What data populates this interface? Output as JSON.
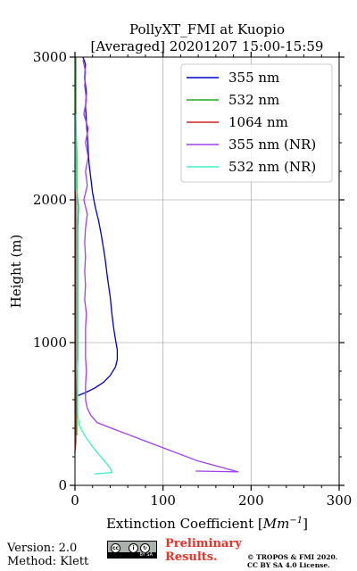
{
  "chart_data": {
    "type": "line",
    "title": "PollyXT_FMI at Kuopio",
    "subtitle": "[Averaged] 20201207 15:00-15:59",
    "xlabel_prefix": "Extinction Coefficient [",
    "xlabel_unit": "Mm",
    "xlabel_exp": "−1",
    "xlabel_suffix": "]",
    "ylabel": "Height (m)",
    "xlim": [
      0,
      300
    ],
    "ylim": [
      0,
      3000
    ],
    "xticks": [
      0,
      100,
      200,
      300
    ],
    "yticks": [
      0,
      1000,
      2000,
      3000
    ],
    "xtick_labels": [
      "0",
      "100",
      "200",
      "300"
    ],
    "ytick_labels": [
      "0",
      "1000",
      "2000",
      "3000"
    ],
    "grid": true,
    "legend_position": "top-right",
    "series": [
      {
        "name": "355 nm",
        "color": "#0000cd",
        "points": [
          [
            2,
            625
          ],
          [
            12,
            650
          ],
          [
            22,
            680
          ],
          [
            32,
            720
          ],
          [
            40,
            770
          ],
          [
            46,
            830
          ],
          [
            48,
            880
          ],
          [
            48,
            950
          ],
          [
            46,
            1020
          ],
          [
            44,
            1100
          ],
          [
            42,
            1200
          ],
          [
            40,
            1320
          ],
          [
            37,
            1450
          ],
          [
            34,
            1600
          ],
          [
            30,
            1750
          ],
          [
            27,
            1850
          ],
          [
            23,
            1950
          ],
          [
            20,
            2050
          ],
          [
            18,
            2150
          ],
          [
            16,
            2250
          ],
          [
            15,
            2350
          ],
          [
            14,
            2450
          ],
          [
            13,
            2550
          ],
          [
            12,
            2650
          ],
          [
            13,
            2750
          ],
          [
            11,
            2850
          ],
          [
            12,
            2950
          ],
          [
            9,
            3000
          ]
        ]
      },
      {
        "name": "532 nm",
        "color": "#22aa22",
        "points": [
          [
            2,
            350
          ],
          [
            2,
            600
          ],
          [
            3,
            900
          ],
          [
            3,
            1200
          ],
          [
            3,
            1500
          ],
          [
            3,
            1800
          ],
          [
            4,
            1950
          ],
          [
            2,
            2050
          ],
          [
            2,
            2300
          ],
          [
            1,
            2600
          ],
          [
            1,
            3000
          ]
        ]
      },
      {
        "name": "1064 nm",
        "color": "#cc2222",
        "points": [
          [
            0,
            220
          ],
          [
            0,
            240
          ],
          [
            1,
            300
          ],
          [
            1,
            600
          ],
          [
            1,
            1000
          ],
          [
            1,
            1400
          ],
          [
            1,
            1700
          ],
          [
            1,
            2000
          ],
          [
            1,
            2100
          ],
          [
            0,
            2250
          ]
        ]
      },
      {
        "name": "355 nm (NR)",
        "color": "#a040f0",
        "points": [
          [
            137,
            100
          ],
          [
            185,
            95
          ],
          [
            170,
            120
          ],
          [
            140,
            170
          ],
          [
            110,
            240
          ],
          [
            80,
            310
          ],
          [
            50,
            380
          ],
          [
            25,
            440
          ],
          [
            18,
            490
          ],
          [
            14,
            540
          ],
          [
            12,
            600
          ],
          [
            12,
            700
          ],
          [
            13,
            800
          ],
          [
            12,
            900
          ],
          [
            12,
            1000
          ],
          [
            12,
            1100
          ],
          [
            13,
            1200
          ],
          [
            11,
            1300
          ],
          [
            12,
            1400
          ],
          [
            11,
            1500
          ],
          [
            12,
            1600
          ],
          [
            11,
            1700
          ],
          [
            12,
            1800
          ],
          [
            14,
            1900
          ],
          [
            10,
            2000
          ],
          [
            14,
            2100
          ],
          [
            12,
            2200
          ],
          [
            15,
            2300
          ],
          [
            12,
            2400
          ],
          [
            15,
            2500
          ],
          [
            10,
            2600
          ],
          [
            13,
            2700
          ],
          [
            11,
            2800
          ],
          [
            12,
            2900
          ],
          [
            9,
            2980
          ]
        ]
      },
      {
        "name": "532 nm (NR)",
        "color": "#40f0c8",
        "points": [
          [
            22,
            80
          ],
          [
            42,
            90
          ],
          [
            40,
            120
          ],
          [
            35,
            160
          ],
          [
            28,
            210
          ],
          [
            20,
            270
          ],
          [
            12,
            340
          ],
          [
            5,
            420
          ],
          [
            3,
            500
          ],
          [
            3,
            600
          ],
          [
            3,
            700
          ],
          [
            3,
            800
          ],
          [
            2,
            900
          ],
          [
            2,
            1000
          ],
          [
            2,
            1100
          ],
          [
            2,
            1200
          ],
          [
            2,
            1300
          ],
          [
            2,
            1400
          ],
          [
            2,
            1500
          ],
          [
            2,
            1600
          ],
          [
            2,
            1700
          ],
          [
            2,
            1800
          ],
          [
            2,
            1900
          ],
          [
            2,
            2000
          ],
          [
            1,
            2100
          ],
          [
            1,
            2200
          ],
          [
            1,
            2300
          ],
          [
            1,
            2400
          ],
          [
            1,
            2500
          ],
          [
            1,
            2600
          ]
        ]
      }
    ]
  },
  "footer": {
    "version": "Version: 2.0",
    "method": "Method: Klett",
    "preliminary_line1": "Preliminary",
    "preliminary_line2": "Results.",
    "copyright_line1": "© TROPOS & FMI 2020.",
    "copyright_line2": "CC BY SA 4.0 License.",
    "license_badge_text": "BY SA"
  }
}
